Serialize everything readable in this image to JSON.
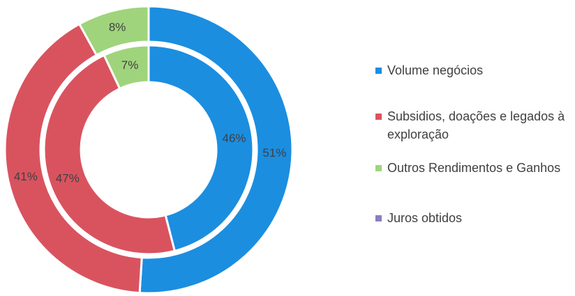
{
  "chart_data": {
    "type": "doughnut",
    "categories": [
      "Volume negócios",
      "Subsidios, doações e legados à exploração",
      "Outros Rendimentos e Ganhos",
      "Juros obtidos"
    ],
    "colors": [
      "#1b8ee0",
      "#d9535f",
      "#9fd47c",
      "#8b7cc5"
    ],
    "rings": [
      {
        "values": [
          51,
          41,
          8,
          0
        ],
        "value_labels": [
          "51%",
          "41%",
          "8%",
          null
        ]
      },
      {
        "values": [
          46,
          47,
          7,
          0
        ],
        "value_labels": [
          "46%",
          "47%",
          "7%",
          null
        ]
      }
    ],
    "legend": "right"
  }
}
